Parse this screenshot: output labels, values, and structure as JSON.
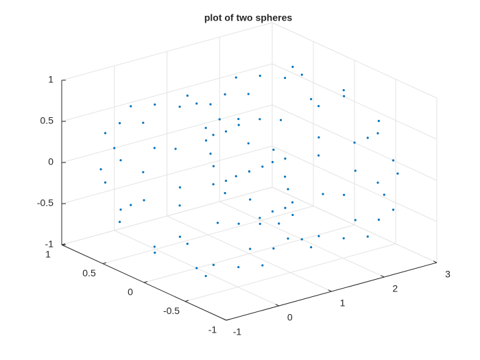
{
  "chart_data": {
    "type": "scatter3",
    "title": "plot of two spheres",
    "xlim": [
      -1,
      3
    ],
    "ylim": [
      -1,
      1
    ],
    "zlim": [
      -1,
      1
    ],
    "xticks": [
      -1,
      0,
      1,
      2,
      3
    ],
    "yticks": [
      -1,
      -0.5,
      0,
      0.5,
      1
    ],
    "zticks": [
      -1,
      -0.5,
      0,
      0.5,
      1
    ],
    "grid": true,
    "series": [
      {
        "color": "#0072bd",
        "x": [
          1,
          0.71,
          0,
          -0.71,
          -1,
          -0.71,
          0,
          0.71,
          0.88,
          0.36,
          -0.36,
          -0.88,
          -0.88,
          -0.36,
          0.36,
          0.88,
          0.88,
          0.36,
          -0.36,
          -0.88,
          -0.88,
          -0.36,
          0.36,
          0.88,
          0.8,
          0.57,
          0,
          -0.57,
          -0.8,
          -0.57,
          0,
          0.57,
          0.8,
          0.57,
          0,
          -0.57,
          -0.8,
          -0.57,
          0,
          0.57,
          0.31,
          -0.31,
          -0.31,
          0.31,
          0.31,
          -0.31,
          -0.31,
          0.31,
          0,
          0
        ],
        "y": [
          0,
          0.71,
          1,
          0.71,
          0,
          -0.71,
          -1,
          -0.71,
          0.36,
          0.88,
          0.88,
          0.36,
          -0.36,
          -0.88,
          -0.88,
          -0.36,
          0.36,
          0.88,
          0.88,
          0.36,
          -0.36,
          -0.88,
          -0.88,
          -0.36,
          0,
          0.57,
          0.8,
          0.57,
          0,
          -0.57,
          -0.8,
          -0.57,
          0,
          0.57,
          0.8,
          0.57,
          0,
          -0.57,
          -0.8,
          -0.57,
          0.31,
          0.31,
          -0.31,
          -0.31,
          0.31,
          0.31,
          -0.31,
          -0.31,
          0,
          0
        ],
        "z": [
          0,
          0,
          0,
          0,
          0,
          0,
          0,
          0,
          0.3,
          0.3,
          0.3,
          0.3,
          0.3,
          0.3,
          0.3,
          0.3,
          -0.3,
          -0.3,
          -0.3,
          -0.3,
          -0.3,
          -0.3,
          -0.3,
          -0.3,
          0.6,
          0.6,
          0.6,
          0.6,
          0.6,
          0.6,
          0.6,
          0.6,
          -0.6,
          -0.6,
          -0.6,
          -0.6,
          -0.6,
          -0.6,
          -0.6,
          -0.6,
          0.9,
          0.9,
          0.9,
          0.9,
          -0.9,
          -0.9,
          -0.9,
          -0.9,
          1,
          -1
        ]
      },
      {
        "color": "#0072bd",
        "x": [
          3,
          2.71,
          2,
          1.29,
          1,
          1.29,
          2,
          2.71,
          2.88,
          2.36,
          1.64,
          1.12,
          1.12,
          1.64,
          2.36,
          2.88,
          2.88,
          2.36,
          1.64,
          1.12,
          1.12,
          1.64,
          2.36,
          2.88,
          2.8,
          2.57,
          2,
          1.43,
          1.2,
          1.43,
          2,
          2.57,
          2.8,
          2.57,
          2,
          1.43,
          1.2,
          1.43,
          2,
          2.57,
          2.31,
          1.69,
          1.69,
          2.31,
          2.31,
          1.69,
          1.69,
          2.31,
          2,
          2
        ],
        "y": [
          0,
          0.71,
          1,
          0.71,
          0,
          -0.71,
          -1,
          -0.71,
          0.36,
          0.88,
          0.88,
          0.36,
          -0.36,
          -0.88,
          -0.88,
          -0.36,
          0.36,
          0.88,
          0.88,
          0.36,
          -0.36,
          -0.88,
          -0.88,
          -0.36,
          0,
          0.57,
          0.8,
          0.57,
          0,
          -0.57,
          -0.8,
          -0.57,
          0,
          0.57,
          0.8,
          0.57,
          0,
          -0.57,
          -0.8,
          -0.57,
          0.31,
          0.31,
          -0.31,
          -0.31,
          0.31,
          0.31,
          -0.31,
          -0.31,
          0,
          0
        ],
        "z": [
          0,
          0,
          0,
          0,
          0,
          0,
          0,
          0,
          0.3,
          0.3,
          0.3,
          0.3,
          0.3,
          0.3,
          0.3,
          0.3,
          -0.3,
          -0.3,
          -0.3,
          -0.3,
          -0.3,
          -0.3,
          -0.3,
          -0.3,
          0.6,
          0.6,
          0.6,
          0.6,
          0.6,
          0.6,
          0.6,
          0.6,
          -0.6,
          -0.6,
          -0.6,
          -0.6,
          -0.6,
          -0.6,
          -0.6,
          -0.6,
          0.9,
          0.9,
          0.9,
          0.9,
          -0.9,
          -0.9,
          -0.9,
          -0.9,
          1,
          -1
        ]
      }
    ]
  }
}
